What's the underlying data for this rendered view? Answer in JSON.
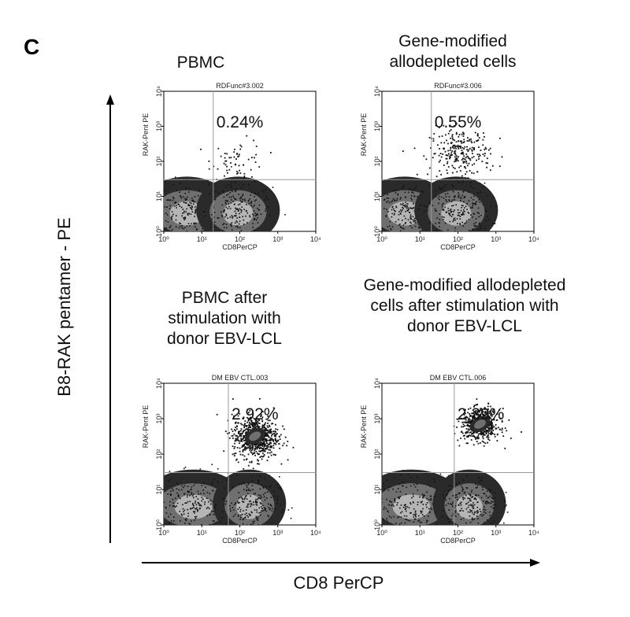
{
  "panel_letter": "C",
  "y_axis_title": "B8-RAK pentamer - PE",
  "x_axis_title": "CD8 PerCP",
  "colors": {
    "axis": "#000000",
    "density_dark": "#2a2a2a",
    "density_mid": "#6f6f6f",
    "density_light": "#b5b5b5",
    "quadrant": "#9a9a9a"
  },
  "chart_data": [
    {
      "type": "scatter",
      "title": "PBMC",
      "subtitle": "RDFunc#3.002",
      "xlabel": "CD8PerCP",
      "ylabel": "RAK-Pent PE",
      "xscale": "log",
      "yscale": "log",
      "xlim": [
        1,
        10000
      ],
      "ylim": [
        1,
        10000
      ],
      "xticks": [
        "10⁰",
        "10¹",
        "10²",
        "10³",
        "10⁴"
      ],
      "yticks": [
        "10⁰",
        "10¹",
        "10²",
        "10³",
        "10⁴"
      ],
      "quadrant_x": 20,
      "quadrant_y": 30,
      "annotation": "0.24%",
      "positive_population": {
        "x_center": 90,
        "y_center": 120,
        "x_spread": 0.35,
        "y_spread": 0.28,
        "count": 60
      },
      "negative_populations": [
        {
          "x_center": 4,
          "y_center": 4,
          "x_spread": 0.45,
          "y_spread": 0.35
        },
        {
          "x_center": 90,
          "y_center": 4,
          "x_spread": 0.4,
          "y_spread": 0.35
        }
      ]
    },
    {
      "type": "scatter",
      "title": "Gene-modified allodepleted cells",
      "title_lines": [
        "Gene-modified",
        "allodepleted cells"
      ],
      "subtitle": "RDFunc#3.006",
      "xlabel": "CD8PerCP",
      "ylabel": "RAK-Pent PE",
      "xscale": "log",
      "yscale": "log",
      "xlim": [
        1,
        10000
      ],
      "ylim": [
        1,
        10000
      ],
      "xticks": [
        "10⁰",
        "10¹",
        "10²",
        "10³",
        "10⁴"
      ],
      "yticks": [
        "10⁰",
        "10¹",
        "10²",
        "10³",
        "10⁴"
      ],
      "quadrant_x": 20,
      "quadrant_y": 30,
      "annotation": "0.55%",
      "positive_population": {
        "x_center": 110,
        "y_center": 180,
        "x_spread": 0.4,
        "y_spread": 0.35,
        "count": 260
      },
      "negative_populations": [
        {
          "x_center": 4,
          "y_center": 4,
          "x_spread": 0.45,
          "y_spread": 0.35
        },
        {
          "x_center": 90,
          "y_center": 4,
          "x_spread": 0.4,
          "y_spread": 0.35
        }
      ]
    },
    {
      "type": "scatter",
      "title": "PBMC after stimulation with donor EBV-LCL",
      "title_lines": [
        "PBMC after",
        "stimulation with",
        "donor EBV-LCL"
      ],
      "subtitle": "DM EBV CTL.003",
      "xlabel": "CD8PerCP",
      "ylabel": "RAK-Pent PE",
      "xscale": "log",
      "yscale": "log",
      "xlim": [
        1,
        10000
      ],
      "ylim": [
        1,
        10000
      ],
      "xticks": [
        "10⁰",
        "10¹",
        "10²",
        "10³",
        "10⁴"
      ],
      "yticks": [
        "10⁰",
        "10¹",
        "10²",
        "10³",
        "10⁴"
      ],
      "quadrant_x": 50,
      "quadrant_y": 30,
      "annotation": "2.92%",
      "positive_population": {
        "x_center": 250,
        "y_center": 320,
        "x_spread": 0.3,
        "y_spread": 0.3,
        "count": 700
      },
      "negative_populations": [
        {
          "x_center": 6,
          "y_center": 4,
          "x_spread": 0.5,
          "y_spread": 0.35
        },
        {
          "x_center": 180,
          "y_center": 4,
          "x_spread": 0.35,
          "y_spread": 0.35
        }
      ]
    },
    {
      "type": "scatter",
      "title": "Gene-modified allodepleted cells after stimulation with donor EBV-LCL",
      "title_lines": [
        "Gene-modified allodepleted",
        "cells after stimulation with",
        "donor EBV-LCL"
      ],
      "subtitle": "DM EBV CTL.006",
      "xlabel": "CD8PerCP",
      "ylabel": "RAK-Pent PE",
      "xscale": "log",
      "yscale": "log",
      "xlim": [
        1,
        10000
      ],
      "ylim": [
        1,
        10000
      ],
      "xticks": [
        "10⁰",
        "10¹",
        "10²",
        "10³",
        "10⁴"
      ],
      "yticks": [
        "10⁰",
        "10¹",
        "10²",
        "10³",
        "10⁴"
      ],
      "quadrant_x": 80,
      "quadrant_y": 30,
      "annotation": "2.39%",
      "positive_population": {
        "x_center": 380,
        "y_center": 700,
        "x_spread": 0.25,
        "y_spread": 0.22,
        "count": 550
      },
      "negative_populations": [
        {
          "x_center": 6,
          "y_center": 4,
          "x_spread": 0.5,
          "y_spread": 0.35
        },
        {
          "x_center": 200,
          "y_center": 4,
          "x_spread": 0.35,
          "y_spread": 0.35
        }
      ]
    }
  ]
}
